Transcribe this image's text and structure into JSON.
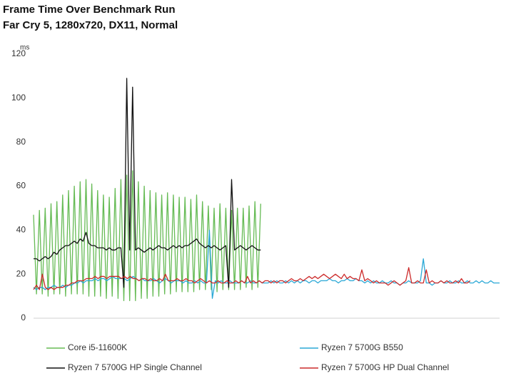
{
  "chart_data": {
    "type": "line",
    "title": "Frame Time Over Benchmark Run",
    "subtitle": "Far Cry 5, 1280x720, DX11, Normal",
    "y_axis_label": "ms",
    "ylim": [
      0,
      120
    ],
    "yticks": [
      0,
      20,
      40,
      60,
      80,
      100,
      120
    ],
    "grid": false,
    "legend": "bottom",
    "series": [
      {
        "name": "Core i5-11600K",
        "color": "#66bb55",
        "values": [
          47,
          11,
          49,
          11,
          50,
          10,
          52,
          11,
          53,
          11,
          56,
          10,
          58,
          11,
          60,
          11,
          62,
          11,
          63,
          10,
          61,
          10,
          58,
          10,
          56,
          9,
          55,
          10,
          59,
          9,
          63,
          8,
          65,
          8,
          67,
          8,
          62,
          9,
          60,
          9,
          58,
          10,
          57,
          10,
          56,
          11,
          57,
          11,
          56,
          12,
          55,
          12,
          55,
          12,
          54,
          12,
          56,
          13,
          53,
          13,
          51,
          13,
          50,
          12,
          52,
          13,
          50,
          13,
          49,
          13,
          50,
          13,
          50,
          14,
          51,
          13,
          53,
          14,
          52,
          null,
          null,
          null,
          null,
          null,
          null,
          null,
          null,
          null,
          null,
          null,
          null,
          null,
          null,
          null,
          null,
          null,
          null,
          null,
          null,
          null,
          null,
          null,
          null,
          null,
          null,
          null,
          null,
          null,
          null,
          null,
          null,
          null,
          null,
          null,
          null,
          null,
          null,
          null,
          null,
          null,
          null,
          null,
          null,
          null,
          null,
          null,
          null,
          null,
          null,
          null,
          null,
          null,
          null,
          null,
          null,
          null,
          null,
          null,
          null,
          null,
          null,
          null,
          null,
          null,
          null,
          null,
          null,
          null,
          null,
          null,
          null,
          null,
          null,
          null,
          null,
          null,
          null,
          null,
          null,
          null,
          null
        ]
      },
      {
        "name": "Ryzen 7 5700G B550",
        "color": "#2aa8d6",
        "values": [
          14,
          13,
          14,
          14,
          13,
          14,
          14,
          15,
          14,
          14,
          15,
          14,
          15,
          15,
          16,
          16,
          17,
          16,
          17,
          17,
          17,
          18,
          17,
          18,
          18,
          17,
          18,
          19,
          18,
          18,
          18,
          18,
          17,
          18,
          19,
          18,
          17,
          18,
          17,
          17,
          17,
          18,
          17,
          16,
          17,
          18,
          17,
          16,
          17,
          17,
          17,
          16,
          17,
          16,
          16,
          17,
          16,
          17,
          16,
          16,
          40,
          9,
          17,
          16,
          17,
          16,
          16,
          17,
          16,
          16,
          16,
          17,
          16,
          16,
          17,
          16,
          16,
          17,
          16,
          16,
          16,
          17,
          16,
          17,
          16,
          16,
          17,
          16,
          17,
          16,
          17,
          16,
          17,
          17,
          16,
          17,
          17,
          16,
          17,
          17,
          17,
          18,
          17,
          17,
          16,
          17,
          17,
          18,
          17,
          17,
          18,
          17,
          17,
          16,
          17,
          16,
          17,
          16,
          16,
          17,
          16,
          16,
          17,
          16,
          16,
          15,
          16,
          16,
          17,
          16,
          16,
          16,
          17,
          27,
          16,
          16,
          15,
          16,
          16,
          17,
          16,
          16,
          17,
          16,
          16,
          17,
          16,
          16,
          17,
          16,
          16,
          17,
          16,
          17,
          16,
          16,
          17,
          16,
          16,
          16
        ]
      },
      {
        "name": "Ryzen 7 5700G HP Single Channel",
        "color": "#111111",
        "values": [
          27,
          27,
          26,
          27,
          28,
          27,
          28,
          30,
          29,
          31,
          32,
          33,
          33,
          34,
          35,
          34,
          36,
          35,
          39,
          34,
          33,
          33,
          32,
          32,
          32,
          31,
          32,
          31,
          31,
          32,
          32,
          14,
          109,
          31,
          105,
          31,
          32,
          31,
          30,
          31,
          32,
          31,
          32,
          33,
          32,
          32,
          31,
          32,
          33,
          32,
          33,
          32,
          33,
          33,
          34,
          35,
          36,
          34,
          33,
          32,
          33,
          32,
          33,
          32,
          31,
          32,
          33,
          14,
          63,
          31,
          32,
          33,
          32,
          31,
          32,
          33,
          32,
          31,
          31,
          null,
          null,
          null,
          null,
          null,
          null,
          null,
          null,
          null,
          null,
          null,
          null,
          null,
          null,
          null,
          null,
          null,
          null,
          null,
          null,
          null,
          null,
          null,
          null,
          null,
          null,
          null,
          null,
          null,
          null,
          null,
          null,
          null,
          null,
          null,
          null,
          null,
          null,
          null,
          null,
          null,
          null,
          null,
          null,
          null,
          null,
          null,
          null,
          null,
          null,
          null,
          null,
          null,
          null,
          null,
          null,
          null,
          null,
          null,
          null,
          null,
          null,
          null,
          null,
          null,
          null,
          null,
          null,
          null,
          null,
          null,
          null,
          null,
          null,
          null,
          null,
          null,
          null,
          null,
          null,
          null,
          null
        ]
      },
      {
        "name": "Ryzen 7 5700G HP Dual Channel",
        "color": "#cc2a2a",
        "values": [
          13,
          15,
          13,
          20,
          14,
          13,
          14,
          13,
          14,
          14,
          14,
          15,
          15,
          16,
          16,
          17,
          17,
          17,
          18,
          18,
          18,
          19,
          18,
          19,
          19,
          18,
          19,
          19,
          19,
          19,
          18,
          19,
          18,
          19,
          18,
          18,
          17,
          18,
          18,
          17,
          18,
          17,
          17,
          18,
          17,
          20,
          17,
          17,
          17,
          18,
          17,
          17,
          18,
          17,
          17,
          16,
          17,
          18,
          17,
          16,
          17,
          16,
          16,
          17,
          16,
          16,
          17,
          16,
          16,
          17,
          16,
          17,
          16,
          19,
          16,
          17,
          16,
          17,
          16,
          17,
          17,
          16,
          17,
          16,
          17,
          17,
          16,
          17,
          18,
          17,
          17,
          18,
          17,
          18,
          19,
          18,
          19,
          18,
          19,
          20,
          19,
          18,
          19,
          20,
          19,
          18,
          20,
          18,
          19,
          18,
          18,
          17,
          22,
          17,
          18,
          17,
          16,
          17,
          16,
          16,
          16,
          15,
          16,
          17,
          16,
          15,
          16,
          17,
          23,
          16,
          16,
          17,
          16,
          16,
          22,
          16,
          17,
          16,
          16,
          17,
          16,
          17,
          16,
          16,
          17,
          16,
          18,
          16,
          16,
          17,
          null,
          null,
          null,
          null,
          null,
          null,
          null,
          null,
          null,
          null
        ]
      }
    ]
  }
}
